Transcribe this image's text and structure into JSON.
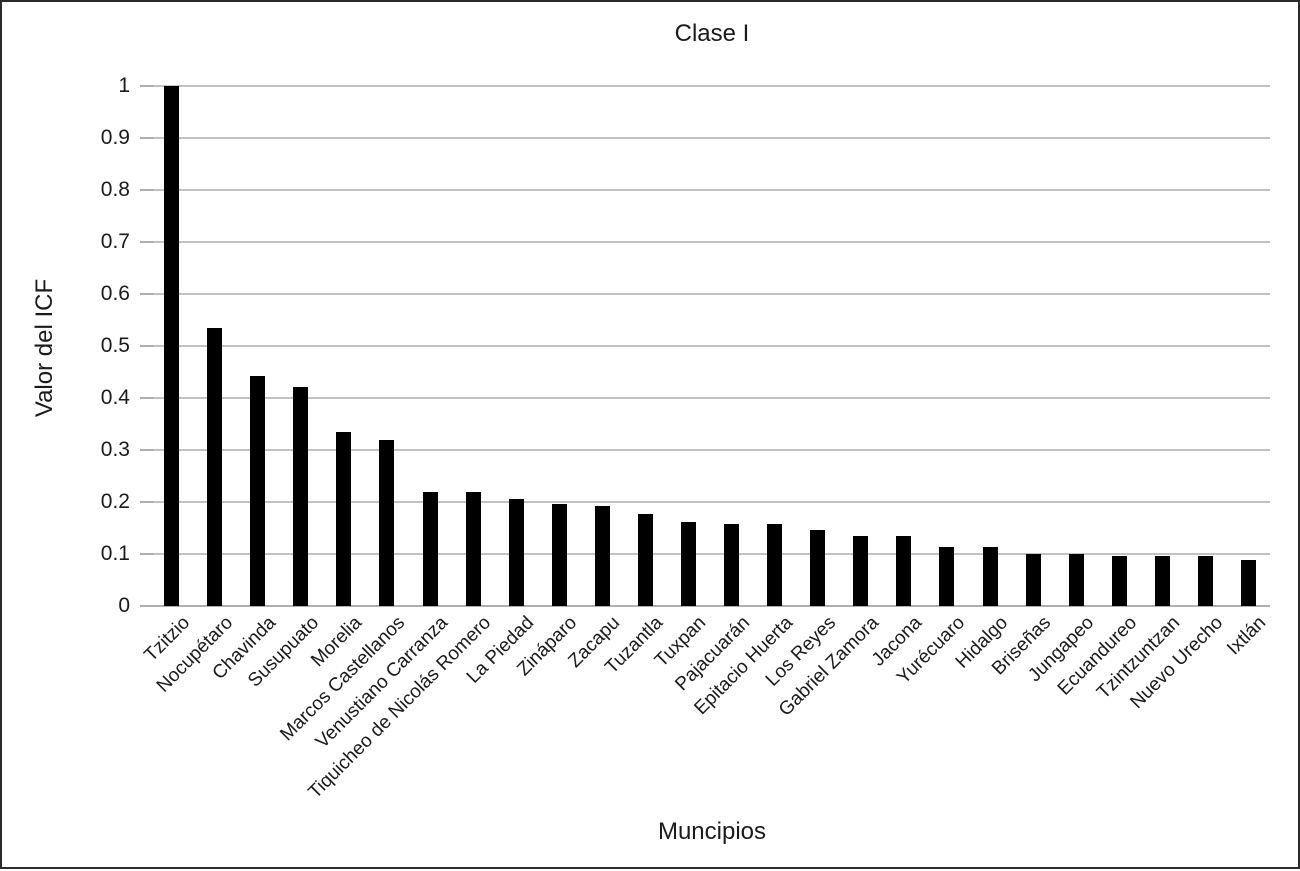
{
  "figure": {
    "title": "Clase I",
    "xlabel": "Muncipios",
    "ylabel": "Valor del ICF"
  },
  "colors": {
    "bar": "#000000",
    "gridline": "#c2c2c2",
    "axis_line": "#b0b0b0",
    "tick": "#b0b0b0",
    "text": "#1a1a1a",
    "background": "#ffffff",
    "border": "#2b2b2b"
  },
  "chart_data": {
    "type": "bar",
    "title": "Clase I",
    "xlabel": "Muncipios",
    "ylabel": "Valor del ICF",
    "ylim": [
      0,
      1
    ],
    "ytick_step": 0.1,
    "ytick_labels": [
      "0",
      "0.1",
      "0.2",
      "0.3",
      "0.4",
      "0.5",
      "0.6",
      "0.7",
      "0.8",
      "0.9",
      "1"
    ],
    "grid": true,
    "legend": false,
    "bar_color": "#000000",
    "categories": [
      "Tzitzio",
      "Nocupétaro",
      "Chavinda",
      "Susupuato",
      "Morelia",
      "Marcos Castellanos",
      "Venustiano Carranza",
      "Tiquicheo de Nicolás Romero",
      "La Piedad",
      "Zináparo",
      "Zacapu",
      "Tuzantla",
      "Tuxpan",
      "Pajacuarán",
      "Epitacio Huerta",
      "Los Reyes",
      "Gabriel Zamora",
      "Jacona",
      "Yurécuaro",
      "Hidalgo",
      "Briseñas",
      "Jungapeo",
      "Ecuandureo",
      "Tzintzuntzan",
      "Nuevo Urecho",
      "Ixtlán"
    ],
    "values": [
      1.0,
      0.535,
      0.442,
      0.422,
      0.334,
      0.319,
      0.219,
      0.219,
      0.206,
      0.196,
      0.192,
      0.176,
      0.161,
      0.157,
      0.157,
      0.146,
      0.134,
      0.134,
      0.114,
      0.114,
      0.1,
      0.1,
      0.096,
      0.096,
      0.096,
      0.088
    ]
  }
}
